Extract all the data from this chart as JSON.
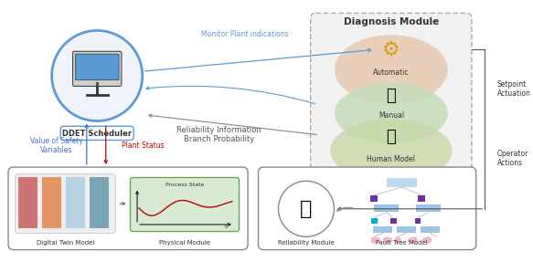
{
  "bg_color": "#ffffff",
  "scheduler_label": "DDET Scheduler",
  "diagnosis_title": "Diagnosis Module",
  "auto_label": "Automatic",
  "manual_label": "Manual",
  "human_label": "Human Model",
  "monitor_text": "Monitor Plant indications",
  "reliability_text": "Reliability Information\nBranch Probability",
  "safety_text": "Value of Safety\nVariables",
  "plant_text": "Plant Status",
  "setpoint_text": "Setpoint\nActuation",
  "operator_text": "Operator\nActions",
  "dt_label": "Digital Twin Model",
  "phys_label": "Physical Module",
  "rel_label": "Reliability Module",
  "ft_label": "Fault Tree Model",
  "process_state_label": "Process State",
  "arrow_blue": "#4472C4",
  "arrow_red": "#C00000",
  "arrow_cyan": "#5B9BD5",
  "diag_bg": "#F2F2F2",
  "auto_fill": "#E8C9B0",
  "manual_fill": "#C5DDB8",
  "human_fill": "#C8D8A8"
}
